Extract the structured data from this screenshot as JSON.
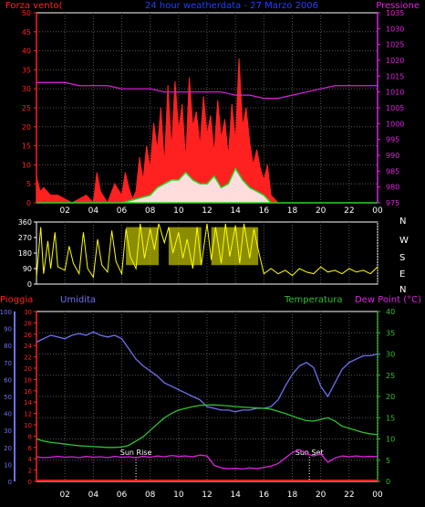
{
  "colors": {
    "wind": "#ff2020",
    "gust": "#ffffff",
    "wind_avg": "#28d428",
    "pressure": "#e020e0",
    "direction": "#ffff00",
    "rain": "#ff2020",
    "humidity": "#7070f0",
    "temperature": "#30c030",
    "dewpoint": "#e020e0",
    "axis": "#ffffff",
    "grid": "#555555"
  },
  "chart_data": [
    {
      "type": "area",
      "title": "24 hour weatherdata - 27 Marzo 2006",
      "left_label": "Forza vento(",
      "right_label": "Pressione",
      "x_ticks": [
        "02",
        "04",
        "06",
        "08",
        "10",
        "12",
        "14",
        "16",
        "18",
        "20",
        "22",
        "00"
      ],
      "y_left_ticks": [
        "0",
        "5",
        "10",
        "15",
        "20",
        "25",
        "30",
        "35",
        "40",
        "45",
        "50"
      ],
      "y_right_ticks": [
        "975",
        "980",
        "985",
        "990",
        "995",
        "1000",
        "1005",
        "1010",
        "1015",
        "1020",
        "1025",
        "1030",
        "1035"
      ],
      "xlim": [
        0,
        24
      ],
      "ylim_left": [
        0,
        50
      ],
      "ylim_right": [
        975,
        1035
      ],
      "grid": true,
      "series": [
        {
          "key": "wind_gust",
          "x": [
            0,
            0.25,
            0.5,
            1,
            1.5,
            2,
            2.5,
            3,
            3.5,
            4,
            4.25,
            4.5,
            5,
            5.5,
            6,
            6.25,
            6.5,
            6.75,
            7,
            7.25,
            7.5,
            7.75,
            8,
            8.25,
            8.5,
            8.75,
            9,
            9.25,
            9.5,
            9.75,
            10,
            10.25,
            10.5,
            10.75,
            11,
            11.25,
            11.5,
            11.75,
            12,
            12.25,
            12.5,
            12.75,
            13,
            13.25,
            13.5,
            13.75,
            14,
            14.25,
            14.5,
            14.75,
            15,
            15.25,
            15.5,
            15.75,
            16,
            16.25,
            16.5,
            17,
            24
          ],
          "values": [
            7,
            3,
            4,
            2,
            2,
            1,
            0,
            1,
            2,
            0,
            8,
            3,
            0,
            5,
            2,
            8,
            4,
            1,
            3,
            12,
            6,
            15,
            9,
            21,
            14,
            25,
            10,
            31,
            14,
            32,
            19,
            26,
            11,
            33,
            20,
            24,
            15,
            28,
            18,
            23,
            13,
            27,
            17,
            22,
            12,
            26,
            16,
            38,
            20,
            25,
            16,
            10,
            14,
            9,
            6,
            10,
            2,
            0,
            0
          ]
        },
        {
          "key": "wind_avg",
          "x": [
            0,
            6,
            7,
            8,
            8.5,
            9,
            9.5,
            10,
            10.5,
            11,
            11.5,
            12,
            12.5,
            13,
            13.5,
            14,
            14.5,
            15,
            15.5,
            16,
            16.5,
            24
          ],
          "values": [
            0,
            0,
            1,
            2,
            4,
            5,
            6,
            6,
            8,
            6,
            5,
            5,
            7,
            4,
            5,
            9,
            6,
            4,
            3,
            2,
            0,
            0
          ]
        },
        {
          "key": "pressure",
          "x": [
            0,
            1,
            2,
            3,
            4,
            5,
            6,
            7,
            8,
            9,
            10,
            11,
            12,
            13,
            14,
            15,
            16,
            17,
            18,
            19,
            20,
            21,
            22,
            23,
            24
          ],
          "values": [
            1013,
            1013,
            1013,
            1012,
            1012,
            1012,
            1011,
            1011,
            1011,
            1010,
            1010,
            1010,
            1010,
            1010,
            1009,
            1009,
            1008,
            1008,
            1009,
            1010,
            1011,
            1012,
            1012,
            1012,
            1012
          ]
        }
      ]
    },
    {
      "type": "area",
      "y_ticks": [
        "0",
        "90",
        "180",
        "270",
        "360"
      ],
      "dir_labels": [
        "N",
        "W",
        "S",
        "E",
        "N"
      ],
      "x_ticks": [
        "02",
        "04",
        "06",
        "08",
        "10",
        "12",
        "14",
        "16",
        "18",
        "20",
        "22",
        "00"
      ],
      "xlim": [
        0,
        24
      ],
      "ylim": [
        0,
        360
      ],
      "series": [
        {
          "key": "direction",
          "x": [
            0,
            0.3,
            0.5,
            0.8,
            1,
            1.3,
            1.5,
            2,
            2.3,
            2.6,
            3,
            3.3,
            3.6,
            4,
            4.3,
            4.6,
            5,
            5.3,
            5.6,
            6,
            6.3,
            6.6,
            7,
            7.3,
            7.6,
            8,
            8.3,
            8.6,
            9,
            9.3,
            9.6,
            10,
            10.3,
            10.6,
            11,
            11.3,
            11.6,
            12,
            12.3,
            12.6,
            13,
            13.3,
            13.6,
            14,
            14.3,
            14.6,
            15,
            15.3,
            15.6,
            16,
            16.5,
            17,
            17.5,
            18,
            18.5,
            19,
            19.5,
            20,
            20.5,
            21,
            21.5,
            22,
            22.5,
            23,
            23.5,
            24
          ],
          "values": [
            40,
            330,
            60,
            250,
            90,
            300,
            100,
            80,
            220,
            120,
            60,
            300,
            90,
            40,
            260,
            110,
            70,
            310,
            130,
            60,
            320,
            160,
            90,
            350,
            150,
            320,
            200,
            350,
            240,
            330,
            180,
            300,
            150,
            260,
            90,
            330,
            110,
            350,
            140,
            330,
            120,
            350,
            160,
            340,
            120,
            350,
            150,
            320,
            200,
            60,
            90,
            60,
            80,
            50,
            90,
            70,
            60,
            100,
            70,
            80,
            60,
            90,
            70,
            80,
            60,
            100
          ]
        }
      ]
    },
    {
      "type": "line",
      "label_rain": "Pioggia",
      "label_humidity": "Umidita",
      "label_temperature": "Temperatura",
      "label_dewpoint": "Dew Point (°C)",
      "rain_ticks": [
        "0",
        "2",
        "4",
        "6",
        "8",
        "10",
        "12",
        "14",
        "16",
        "18",
        "20",
        "22",
        "24",
        "26",
        "28",
        "30"
      ],
      "humidity_ticks": [
        "0",
        "10",
        "20",
        "30",
        "40",
        "50",
        "60",
        "70",
        "80",
        "90",
        "100"
      ],
      "temp_ticks": [
        "0",
        "5",
        "10",
        "15",
        "20",
        "25",
        "30",
        "35",
        "40"
      ],
      "x_ticks": [
        "02",
        "04",
        "06",
        "08",
        "10",
        "12",
        "14",
        "16",
        "18",
        "20",
        "22",
        "00"
      ],
      "xlim": [
        0,
        24
      ],
      "ylim_temp": [
        0,
        40
      ],
      "ylim_humidity": [
        0,
        100
      ],
      "ylim_rain": [
        0,
        30
      ],
      "grid": true,
      "annotations": [
        {
          "label": "Sun Rise",
          "x": 7.0
        },
        {
          "label": "Sun Set",
          "x": 19.2
        }
      ],
      "series": [
        {
          "key": "humidity",
          "x": [
            0,
            0.5,
            1,
            1.5,
            2,
            2.5,
            3,
            3.5,
            4,
            4.5,
            5,
            5.5,
            6,
            6.5,
            7,
            7.5,
            8,
            8.5,
            9,
            9.5,
            10,
            10.5,
            11,
            11.5,
            12,
            12.5,
            13,
            13.5,
            14,
            14.5,
            15,
            15.5,
            16,
            16.5,
            17,
            17.5,
            18,
            18.5,
            19,
            19.5,
            20,
            20.5,
            21,
            21.5,
            22,
            22.5,
            23,
            23.5,
            24
          ],
          "values": [
            82,
            84,
            86,
            85,
            84,
            86,
            87,
            86,
            88,
            86,
            85,
            86,
            84,
            78,
            72,
            68,
            65,
            62,
            58,
            56,
            54,
            52,
            50,
            48,
            44,
            43,
            42,
            42,
            41,
            42,
            42,
            43,
            43,
            44,
            48,
            56,
            63,
            68,
            70,
            67,
            56,
            50,
            58,
            66,
            70,
            72,
            74,
            74,
            75
          ]
        },
        {
          "key": "temperature",
          "x": [
            0,
            0.5,
            1,
            1.5,
            2,
            2.5,
            3,
            3.5,
            4,
            4.5,
            5,
            5.5,
            6,
            6.5,
            7,
            7.5,
            8,
            8.5,
            9,
            9.5,
            10,
            10.5,
            11,
            11.5,
            12,
            12.5,
            13,
            13.5,
            14,
            14.5,
            15,
            15.5,
            16,
            16.5,
            17,
            17.5,
            18,
            18.5,
            19,
            19.5,
            20,
            20.5,
            21,
            21.5,
            22,
            22.5,
            23,
            23.5,
            24
          ],
          "values": [
            10,
            9.5,
            9.2,
            9,
            8.8,
            8.6,
            8.4,
            8.3,
            8.2,
            8.1,
            8.0,
            8.0,
            8.1,
            8.5,
            9.5,
            10.5,
            12,
            13.5,
            15,
            16,
            16.8,
            17.2,
            17.6,
            17.9,
            18,
            18,
            17.9,
            17.8,
            17.6,
            17.5,
            17.4,
            17.3,
            17.2,
            17,
            16.5,
            16,
            15.4,
            14.8,
            14.3,
            14.2,
            14.6,
            15,
            14.2,
            13,
            12.5,
            12,
            11.5,
            11.2,
            11
          ]
        },
        {
          "key": "dewpoint",
          "x": [
            0,
            0.5,
            1,
            1.5,
            2,
            2.5,
            3,
            3.5,
            4,
            4.5,
            5,
            5.5,
            6,
            6.5,
            7,
            7.5,
            8,
            8.5,
            9,
            9.5,
            10,
            10.5,
            11,
            11.5,
            12,
            12.5,
            13,
            13.5,
            14,
            14.5,
            15,
            15.5,
            16,
            16.5,
            17,
            17.5,
            18,
            18.5,
            19,
            19.5,
            20,
            20.5,
            21,
            21.5,
            22,
            22.5,
            23,
            23.5,
            24
          ],
          "values": [
            5.8,
            5.6,
            5.7,
            5.9,
            5.7,
            5.8,
            5.6,
            5.9,
            5.7,
            5.8,
            5.6,
            5.9,
            5.7,
            5.8,
            5.6,
            5.9,
            5.7,
            6.0,
            5.8,
            6.1,
            5.9,
            6.0,
            5.8,
            6.2,
            6.0,
            3.8,
            3.2,
            3.0,
            3.1,
            2.9,
            3.2,
            3.0,
            3.3,
            3.6,
            4.2,
            5.5,
            6.8,
            7.5,
            6.5,
            6.0,
            6.5,
            4.5,
            5.5,
            6.0,
            5.8,
            6.0,
            5.8,
            5.9,
            5.8
          ]
        },
        {
          "key": "rain",
          "x": [
            0,
            24
          ],
          "values": [
            0,
            0
          ]
        }
      ]
    }
  ]
}
